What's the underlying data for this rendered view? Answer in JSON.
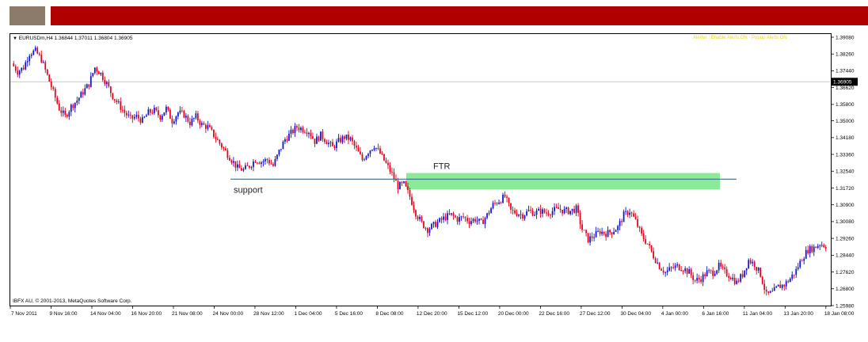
{
  "header": {
    "thumb_color": "#8c7a6b",
    "banner_color": "#b00000"
  },
  "chart_header": {
    "symbol_line": "EURUSDm,H4  1.36844 1.37011 1.36804 1.36905",
    "alert_text": "Alerter : Enable Alerts:ON - Popup Alerts:ON",
    "copyright": "IBFX AU, © 2001-2013, MetaQuotes Software Corp."
  },
  "chart_data": {
    "type": "candlestick",
    "symbol": "EURUSDm",
    "timeframe": "H4",
    "y_ticks": [
      "1.39080",
      "1.38260",
      "1.37440",
      "1.36620",
      "1.35800",
      "1.35000",
      "1.34180",
      "1.33360",
      "1.32540",
      "1.31720",
      "1.30900",
      "1.30080",
      "1.29260",
      "1.28440",
      "1.27620",
      "1.26800",
      "1.25980"
    ],
    "ylim": [
      1.2598,
      1.3908
    ],
    "current_price": "1.36905",
    "x_ticks": [
      "7 Nov 2011",
      "9 Nov 16:00",
      "14 Nov 04:00",
      "16 Nov 20:00",
      "21 Nov 08:00",
      "24 Nov 00:00",
      "28 Nov 12:00",
      "1 Dec 04:00",
      "5 Dec 16:00",
      "8 Dec 08:00",
      "12 Dec 20:00",
      "15 Dec 12:00",
      "20 Dec 00:00",
      "22 Dec 16:00",
      "27 Dec 12:00",
      "30 Dec 04:00",
      "4 Jan 00:00",
      "6 Jan 16:00",
      "11 Jan 04:00",
      "13 Jan 20:00",
      "18 Jan 08:00"
    ],
    "close_path": [
      1.378,
      1.374,
      1.376,
      1.383,
      1.384,
      1.38,
      1.372,
      1.364,
      1.356,
      1.352,
      1.357,
      1.36,
      1.364,
      1.368,
      1.376,
      1.373,
      1.368,
      1.362,
      1.358,
      1.354,
      1.351,
      1.352,
      1.35,
      1.354,
      1.355,
      1.352,
      1.356,
      1.35,
      1.354,
      1.353,
      1.349,
      1.352,
      1.348,
      1.347,
      1.343,
      1.339,
      1.335,
      1.331,
      1.327,
      1.326,
      1.328,
      1.331,
      1.33,
      1.331,
      1.328,
      1.335,
      1.341,
      1.344,
      1.347,
      1.346,
      1.345,
      1.34,
      1.343,
      1.34,
      1.337,
      1.34,
      1.342,
      1.341,
      1.336,
      1.331,
      1.335,
      1.338,
      1.334,
      1.329,
      1.324,
      1.318,
      1.319,
      1.313,
      1.305,
      1.3,
      1.297,
      1.299,
      1.301,
      1.303,
      1.304,
      1.302,
      1.303,
      1.301,
      1.302,
      1.3,
      1.304,
      1.309,
      1.311,
      1.313,
      1.306,
      1.305,
      1.304,
      1.306,
      1.305,
      1.306,
      1.305,
      1.306,
      1.307,
      1.306,
      1.306,
      1.307,
      1.297,
      1.292,
      1.294,
      1.296,
      1.295,
      1.296,
      1.298,
      1.304,
      1.306,
      1.301,
      1.294,
      1.29,
      1.284,
      1.279,
      1.276,
      1.278,
      1.279,
      1.278,
      1.276,
      1.272,
      1.273,
      1.276,
      1.276,
      1.279,
      1.276,
      1.274,
      1.271,
      1.275,
      1.282,
      1.28,
      1.275,
      1.265,
      1.266,
      1.269,
      1.27,
      1.273,
      1.277,
      1.283,
      1.287,
      1.288,
      1.29,
      1.289
    ],
    "support": {
      "label": "support",
      "price": 1.3215
    },
    "ftr": {
      "label": "FTR",
      "price_top": 1.3245,
      "price_bottom": 1.3165
    },
    "colors": {
      "bull": "#1010d0",
      "bear": "#e0001a",
      "zone": "#7de889",
      "support_line": "#3d6f8f",
      "grid": "#c8c8c8",
      "badge": "#000000"
    }
  }
}
